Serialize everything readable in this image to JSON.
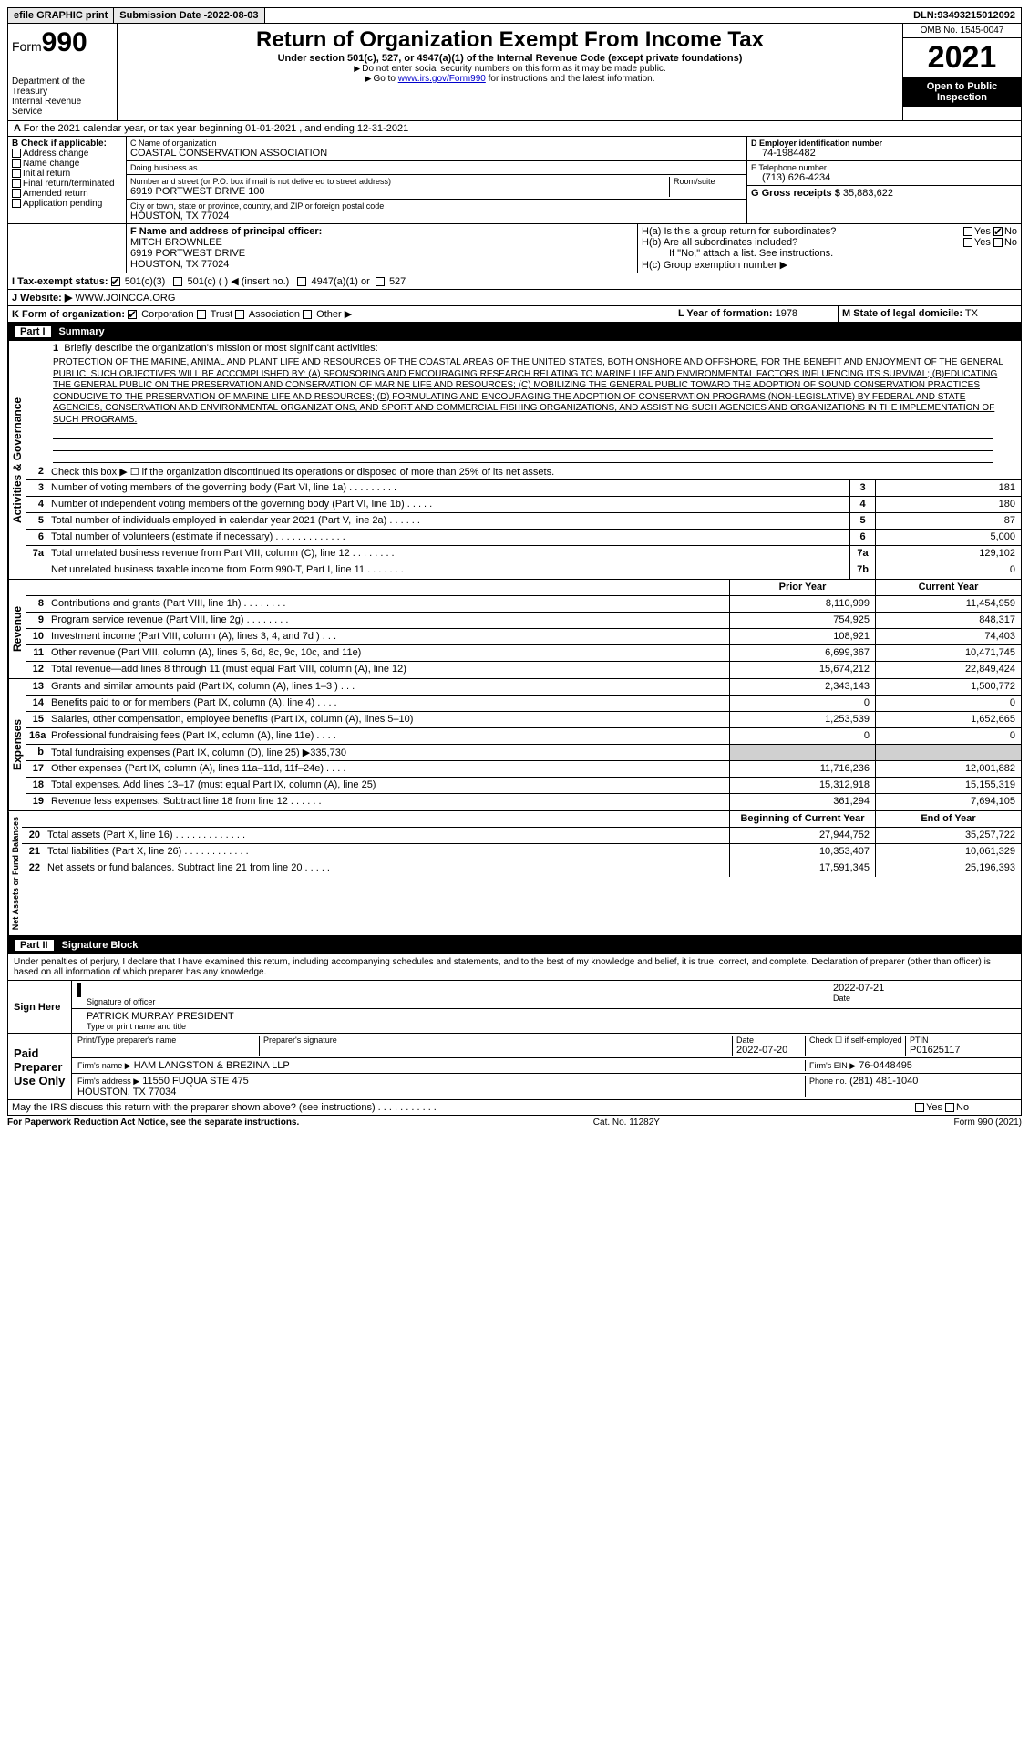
{
  "topbar": {
    "efile": "efile GRAPHIC print",
    "submission_label": "Submission Date - ",
    "submission_date": "2022-08-03",
    "dln_label": "DLN: ",
    "dln": "93493215012092"
  },
  "header": {
    "form_prefix": "Form",
    "form_number": "990",
    "dept": "Department of the Treasury\nInternal Revenue Service",
    "title": "Return of Organization Exempt From Income Tax",
    "subtitle": "Under section 501(c), 527, or 4947(a)(1) of the Internal Revenue Code (except private foundations)",
    "note1": "Do not enter social security numbers on this form as it may be made public.",
    "note2_pre": "Go to ",
    "note2_link": "www.irs.gov/Form990",
    "note2_post": " for instructions and the latest information.",
    "omb": "OMB No. 1545-0047",
    "year": "2021",
    "open": "Open to Public Inspection"
  },
  "period": {
    "text": "For the 2021 calendar year, or tax year beginning 01-01-2021   , and ending 12-31-2021",
    "prefix": "A"
  },
  "colB": {
    "label": "B Check if applicable:",
    "items": [
      "Address change",
      "Name change",
      "Initial return",
      "Final return/terminated",
      "Amended return",
      "Application pending"
    ]
  },
  "colC": {
    "name_label": "C Name of organization",
    "name": "COASTAL CONSERVATION ASSOCIATION",
    "dba_label": "Doing business as",
    "dba": "",
    "street_label": "Number and street (or P.O. box if mail is not delivered to street address)",
    "room_label": "Room/suite",
    "street": "6919 PORTWEST DRIVE 100",
    "city_label": "City or town, state or province, country, and ZIP or foreign postal code",
    "city": "HOUSTON, TX  77024"
  },
  "colDE": {
    "ein_label": "D Employer identification number",
    "ein": "74-1984482",
    "phone_label": "E Telephone number",
    "phone": "(713) 626-4234",
    "gross_label": "G Gross receipts $",
    "gross": "35,883,622"
  },
  "F": {
    "label": "F  Name and address of principal officer:",
    "name": "MITCH BROWNLEE",
    "street": "6919 PORTWEST DRIVE",
    "city": "HOUSTON, TX  77024"
  },
  "H": {
    "a_label": "H(a)  Is this a group return for subordinates?",
    "a_yes": "Yes",
    "a_no": "No",
    "b_label": "H(b)  Are all subordinates included?",
    "b_note": "If \"No,\" attach a list. See instructions.",
    "c_label": "H(c)  Group exemption number ▶"
  },
  "I": {
    "label": "I   Tax-exempt status:",
    "opt1": "501(c)(3)",
    "opt2": "501(c) (   ) ◀ (insert no.)",
    "opt3": "4947(a)(1) or",
    "opt4": "527"
  },
  "J": {
    "label": "J   Website: ▶",
    "value": "WWW.JOINCCA.ORG"
  },
  "K": {
    "label": "K Form of organization:",
    "opts": [
      "Corporation",
      "Trust",
      "Association",
      "Other ▶"
    ]
  },
  "L": {
    "label": "L Year of formation:",
    "value": "1978"
  },
  "M": {
    "label": "M State of legal domicile:",
    "value": "TX"
  },
  "part1": {
    "tag": "Part I",
    "title": "Summary"
  },
  "tabs": {
    "gov": "Activities & Governance",
    "rev": "Revenue",
    "exp": "Expenses",
    "net": "Net Assets or Fund Balances"
  },
  "summary": {
    "line1_label": "Briefly describe the organization's mission or most significant activities:",
    "mission": "PROTECTION OF THE MARINE, ANIMAL AND PLANT LIFE AND RESOURCES OF THE COASTAL AREAS OF THE UNITED STATES, BOTH ONSHORE AND OFFSHORE, FOR THE BENEFIT AND ENJOYMENT OF THE GENERAL PUBLIC. SUCH OBJECTIVES WILL BE ACCOMPLISHED BY: (A) SPONSORING AND ENCOURAGING RESEARCH RELATING TO MARINE LIFE AND ENVIRONMENTAL FACTORS INFLUENCING ITS SURVIVAL; (B)EDUCATING THE GENERAL PUBLIC ON THE PRESERVATION AND CONSERVATION OF MARINE LIFE AND RESOURCES; (C) MOBILIZING THE GENERAL PUBLIC TOWARD THE ADOPTION OF SOUND CONSERVATION PRACTICES CONDUCIVE TO THE PRESERVATION OF MARINE LIFE AND RESOURCES; (D) FORMULATING AND ENCOURAGING THE ADOPTION OF CONSERVATION PROGRAMS (NON-LEGISLATIVE) BY FEDERAL AND STATE AGENCIES, CONSERVATION AND ENVIRONMENTAL ORGANIZATIONS, AND SPORT AND COMMERCIAL FISHING ORGANIZATIONS, AND ASSISTING SUCH AGENCIES AND ORGANIZATIONS IN THE IMPLEMENTATION OF SUCH PROGRAMS.",
    "line2": "Check this box ▶ ☐ if the organization discontinued its operations or disposed of more than 25% of its net assets.",
    "gov_rows": [
      {
        "n": "3",
        "d": "Number of voting members of the governing body (Part VI, line 1a)  .  .  .  .  .  .  .  .  .",
        "b": "3",
        "v": "181"
      },
      {
        "n": "4",
        "d": "Number of independent voting members of the governing body (Part VI, line 1b)  .  .  .  .  .",
        "b": "4",
        "v": "180"
      },
      {
        "n": "5",
        "d": "Total number of individuals employed in calendar year 2021 (Part V, line 2a)  .  .  .  .  .  .",
        "b": "5",
        "v": "87"
      },
      {
        "n": "6",
        "d": "Total number of volunteers (estimate if necessary)  .  .  .  .  .  .  .  .  .  .  .  .  .",
        "b": "6",
        "v": "5,000"
      },
      {
        "n": "7a",
        "d": "Total unrelated business revenue from Part VIII, column (C), line 12  .  .  .  .  .  .  .  .",
        "b": "7a",
        "v": "129,102"
      },
      {
        "n": "",
        "d": "Net unrelated business taxable income from Form 990-T, Part I, line 11  .  .  .  .  .  .  .",
        "b": "7b",
        "v": "0"
      }
    ],
    "col_headers": {
      "prior": "Prior Year",
      "current": "Current Year"
    },
    "rev_rows": [
      {
        "n": "8",
        "d": "Contributions and grants (Part VIII, line 1h)  .  .  .  .  .  .  .  .",
        "p": "8,110,999",
        "c": "11,454,959"
      },
      {
        "n": "9",
        "d": "Program service revenue (Part VIII, line 2g)  .  .  .  .  .  .  .  .",
        "p": "754,925",
        "c": "848,317"
      },
      {
        "n": "10",
        "d": "Investment income (Part VIII, column (A), lines 3, 4, and 7d )  .  .  .",
        "p": "108,921",
        "c": "74,403"
      },
      {
        "n": "11",
        "d": "Other revenue (Part VIII, column (A), lines 5, 6d, 8c, 9c, 10c, and 11e)",
        "p": "6,699,367",
        "c": "10,471,745"
      },
      {
        "n": "12",
        "d": "Total revenue—add lines 8 through 11 (must equal Part VIII, column (A), line 12)",
        "p": "15,674,212",
        "c": "22,849,424"
      }
    ],
    "exp_rows": [
      {
        "n": "13",
        "d": "Grants and similar amounts paid (Part IX, column (A), lines 1–3 )  .  .  .",
        "p": "2,343,143",
        "c": "1,500,772"
      },
      {
        "n": "14",
        "d": "Benefits paid to or for members (Part IX, column (A), line 4)  .  .  .  .",
        "p": "0",
        "c": "0"
      },
      {
        "n": "15",
        "d": "Salaries, other compensation, employee benefits (Part IX, column (A), lines 5–10)",
        "p": "1,253,539",
        "c": "1,652,665"
      },
      {
        "n": "16a",
        "d": "Professional fundraising fees (Part IX, column (A), line 11e)  .  .  .  .",
        "p": "0",
        "c": "0"
      },
      {
        "n": "b",
        "d": "Total fundraising expenses (Part IX, column (D), line 25) ▶335,730",
        "p": "shade",
        "c": "shade"
      },
      {
        "n": "17",
        "d": "Other expenses (Part IX, column (A), lines 11a–11d, 11f–24e)  .  .  .  .",
        "p": "11,716,236",
        "c": "12,001,882"
      },
      {
        "n": "18",
        "d": "Total expenses. Add lines 13–17 (must equal Part IX, column (A), line 25)",
        "p": "15,312,918",
        "c": "15,155,319"
      },
      {
        "n": "19",
        "d": "Revenue less expenses. Subtract line 18 from line 12  .  .  .  .  .  .",
        "p": "361,294",
        "c": "7,694,105"
      }
    ],
    "net_headers": {
      "begin": "Beginning of Current Year",
      "end": "End of Year"
    },
    "net_rows": [
      {
        "n": "20",
        "d": "Total assets (Part X, line 16)  .  .  .  .  .  .  .  .  .  .  .  .  .",
        "p": "27,944,752",
        "c": "35,257,722"
      },
      {
        "n": "21",
        "d": "Total liabilities (Part X, line 26)  .  .  .  .  .  .  .  .  .  .  .  .",
        "p": "10,353,407",
        "c": "10,061,329"
      },
      {
        "n": "22",
        "d": "Net assets or fund balances. Subtract line 21 from line 20  .  .  .  .  .",
        "p": "17,591,345",
        "c": "25,196,393"
      }
    ]
  },
  "part2": {
    "tag": "Part II",
    "title": "Signature Block"
  },
  "sig": {
    "perjury": "Under penalties of perjury, I declare that I have examined this return, including accompanying schedules and statements, and to the best of my knowledge and belief, it is true, correct, and complete. Declaration of preparer (other than officer) is based on all information of which preparer has any knowledge.",
    "sign_here": "Sign Here",
    "officer_sig": "Signature of officer",
    "date_label": "Date",
    "date": "2022-07-21",
    "officer_name": "PATRICK MURRAY PRESIDENT",
    "officer_type": "Type or print name and title",
    "paid_label": "Paid Preparer Use Only",
    "prep_name_label": "Print/Type preparer's name",
    "prep_sig_label": "Preparer's signature",
    "prep_date_label": "Date",
    "prep_date": "2022-07-20",
    "self_emp": "Check ☐ if self-employed",
    "ptin_label": "PTIN",
    "ptin": "P01625117",
    "firm_name_label": "Firm's name    ▶",
    "firm_name": "HAM LANGSTON & BREZINA LLP",
    "firm_ein_label": "Firm's EIN ▶",
    "firm_ein": "76-0448495",
    "firm_addr_label": "Firm's address ▶",
    "firm_addr": "11550 FUQUA STE 475\nHOUSTON, TX  77034",
    "firm_phone_label": "Phone no.",
    "firm_phone": "(281) 481-1040"
  },
  "footer": {
    "discuss": "May the IRS discuss this return with the preparer shown above? (see instructions)  .  .  .  .  .  .  .  .  .  .  .",
    "yes": "Yes",
    "no": "No",
    "pra": "For Paperwork Reduction Act Notice, see the separate instructions.",
    "cat": "Cat. No. 11282Y",
    "form": "Form 990 (2021)"
  }
}
